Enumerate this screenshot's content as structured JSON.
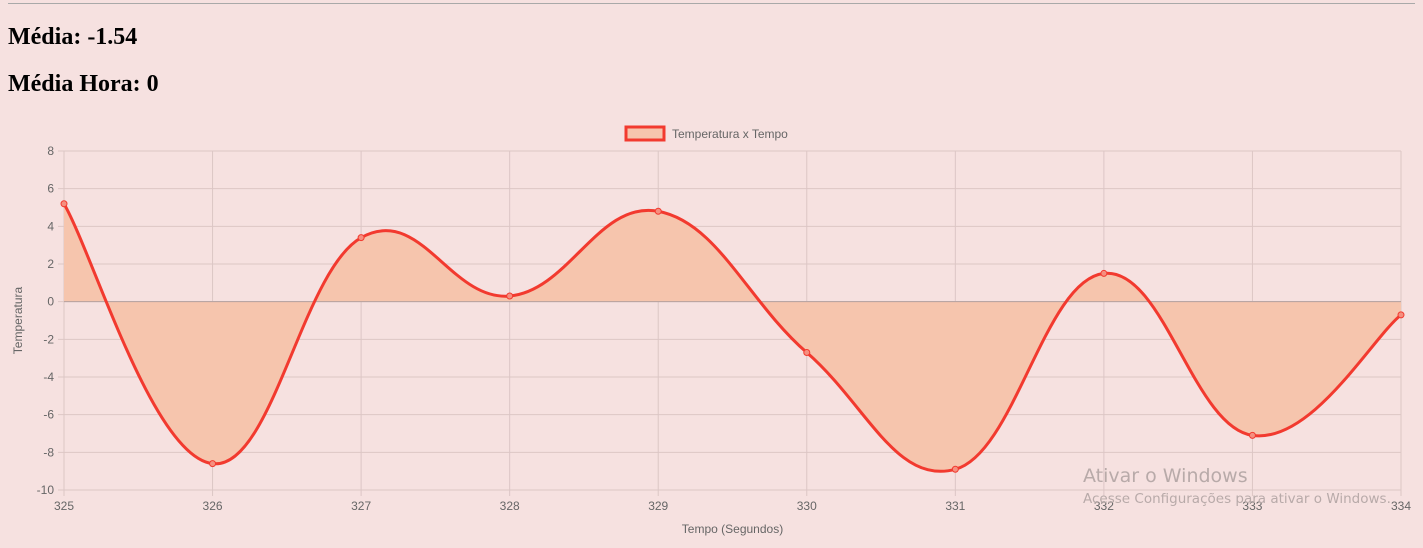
{
  "stats": {
    "media": "Média: -1.54",
    "media_hora": "Média Hora: 0"
  },
  "chart_data": {
    "type": "area",
    "x": [
      325,
      326,
      327,
      328,
      329,
      330,
      331,
      332,
      333,
      334
    ],
    "series": [
      {
        "name": "Temperatura x Tempo",
        "values": [
          5.2,
          -8.6,
          3.4,
          0.3,
          4.8,
          -2.7,
          -8.9,
          1.5,
          -7.1,
          -0.7
        ],
        "line_color": "#f23a2f",
        "fill_color": "#f6c5ad"
      }
    ],
    "xlabel": "Tempo (Segundos)",
    "ylabel": "Temperatura",
    "xlim": [
      325,
      334
    ],
    "ylim": [
      -10,
      8
    ],
    "y_ticks": [
      8,
      6,
      4,
      2,
      0,
      -2,
      -4,
      -6,
      -8,
      -10
    ],
    "x_ticks": [
      325,
      326,
      327,
      328,
      329,
      330,
      331,
      332,
      333,
      334
    ],
    "grid": true,
    "legend": "top-center",
    "curve": "smooth"
  },
  "watermark": {
    "title": "Ativar o Windows",
    "subtitle": "Acesse Configurações para ativar o Windows."
  }
}
